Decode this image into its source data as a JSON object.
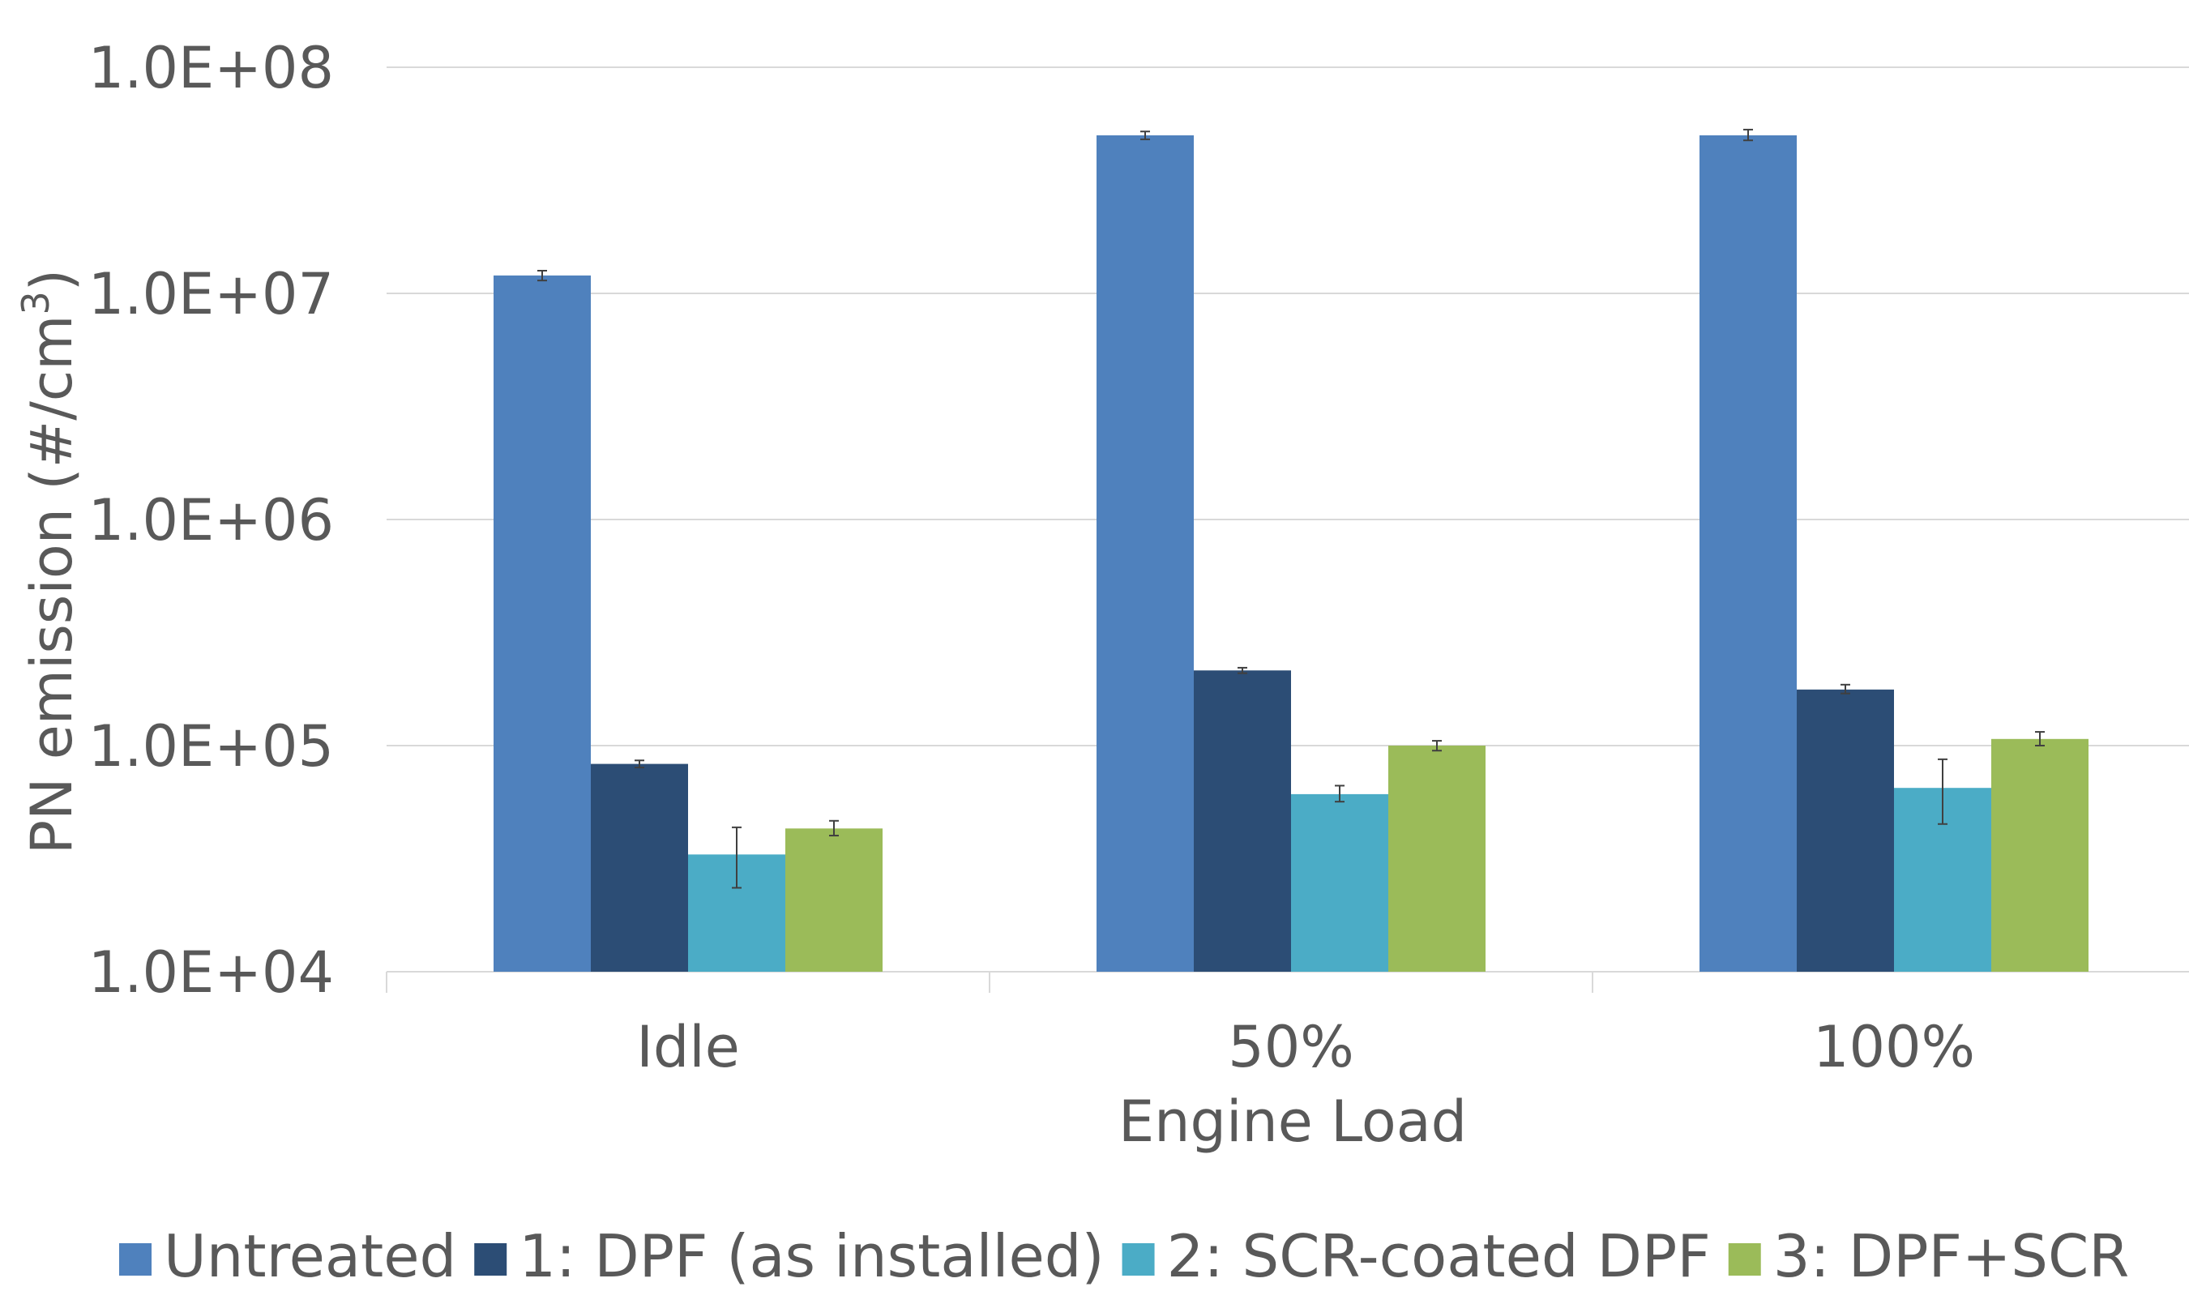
{
  "chart_data": {
    "type": "bar",
    "yscale": "log",
    "ylim": [
      10000,
      100000000
    ],
    "yticks": [
      "1.0E+04",
      "1.0E+05",
      "1.0E+06",
      "1.0E+07",
      "1.0E+08"
    ],
    "xlabel": "Engine Load",
    "ylabel": "PN emission (#/cm",
    "ylabel_sup": "3",
    "ylabel_close": ")",
    "categories": [
      "Idle",
      "50%",
      "100%"
    ],
    "grid": true,
    "legend_position": "bottom",
    "series": [
      {
        "name": "Untreated",
        "color": "#4F81BD",
        "values": [
          12000000,
          50000000,
          50000000
        ],
        "err_low": [
          11400000,
          48000000,
          47500000
        ],
        "err_high": [
          12600000,
          52000000,
          53000000
        ]
      },
      {
        "name": "1: DPF (as installed)",
        "color": "#2C4D75",
        "values": [
          83000,
          215000,
          177000
        ],
        "err_low": [
          80000,
          209000,
          170000
        ],
        "err_high": [
          86000,
          221000,
          186000
        ]
      },
      {
        "name": "2: SCR-coated DPF",
        "color": "#4BACC6",
        "values": [
          33000,
          61000,
          65000
        ],
        "err_low": [
          23500,
          56500,
          45000
        ],
        "err_high": [
          43500,
          66500,
          87000
        ]
      },
      {
        "name": "3: DPF+SCR",
        "color": "#9BBB59",
        "values": [
          43000,
          100000,
          107000
        ],
        "err_low": [
          40000,
          95000,
          100000
        ],
        "err_high": [
          46500,
          105000,
          115000
        ]
      }
    ]
  }
}
